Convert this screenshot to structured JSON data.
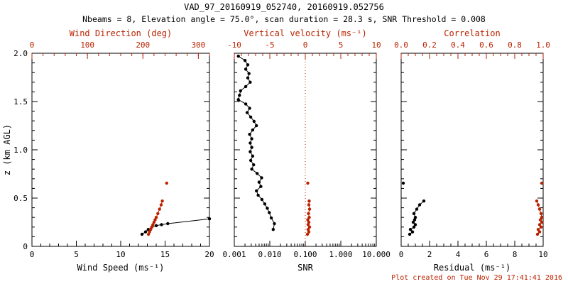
{
  "title": "VAD_97_20160919_052740, 20160919.052756",
  "subtitle": "Nbeams = 8, Elevation angle = 75.0°, scan duration = 28.3 s, SNR Threshold = 0.008",
  "footer": "Plot created on Tue Nov 29 17:41:41 2016",
  "colors": {
    "primary": "#000000",
    "secondary": "#bb2200",
    "background": "#ffffff"
  },
  "chart_data": [
    {
      "type": "scatter",
      "id": "wind",
      "xlabel": "Wind Speed (ms⁻¹)",
      "xlabel_top": "Wind Direction (deg)",
      "ylabel": "z (km AGL)",
      "bottom_axis": {
        "min": 0,
        "max": 20,
        "ticks": [
          0,
          5,
          10,
          15,
          20
        ],
        "labels": [
          "0",
          "5",
          "10",
          "15",
          "20"
        ],
        "minor": 1
      },
      "top_axis": {
        "min": 0,
        "max": 320,
        "ticks": [
          0,
          100,
          200,
          300
        ],
        "labels": [
          "0",
          "100",
          "200",
          "300"
        ],
        "minor": 20
      },
      "y_axis": {
        "min": 0,
        "max": 2,
        "ticks": [
          0,
          0.5,
          1.0,
          1.5,
          2.0
        ],
        "labels": [
          "0",
          "0.5",
          "1.0",
          "1.5",
          "2.0"
        ],
        "minor": 0.1,
        "show_labels": true
      },
      "series": [
        {
          "name": "wind-speed",
          "axis": "bottom",
          "color": "#000000",
          "line": true,
          "points": [
            [
              12.4,
              0.125
            ],
            [
              12.8,
              0.15
            ],
            [
              13.1,
              0.175
            ],
            [
              13.5,
              0.2
            ],
            [
              14.0,
              0.215
            ],
            [
              14.6,
              0.225
            ],
            [
              15.3,
              0.235
            ],
            [
              20.0,
              0.285
            ]
          ]
        },
        {
          "name": "wind-direction",
          "axis": "top",
          "color": "#bb2200",
          "line": true,
          "points": [
            [
              210,
              0.125
            ],
            [
              212,
              0.15
            ],
            [
              214,
              0.175
            ],
            [
              216,
              0.2
            ],
            [
              218,
              0.225
            ],
            [
              220,
              0.25
            ],
            [
              222,
              0.275
            ],
            [
              224,
              0.3
            ],
            [
              227,
              0.34
            ],
            [
              230,
              0.385
            ],
            [
              233,
              0.43
            ],
            [
              235,
              0.47
            ]
          ]
        },
        {
          "name": "wind-direction-outlier",
          "axis": "top",
          "color": "#bb2200",
          "line": false,
          "points": [
            [
              243,
              0.655
            ]
          ]
        }
      ]
    },
    {
      "type": "scatter",
      "id": "snr",
      "xlabel": "SNR",
      "xlabel_top": "Vertical velocity (ms⁻¹)",
      "ylabel": "",
      "bottom_axis": {
        "scale": "log",
        "min": 0.001,
        "max": 10,
        "ticks": [
          0.001,
          0.01,
          0.1,
          1,
          10
        ],
        "labels": [
          "0.001",
          "0.010",
          "0.100",
          "1.000",
          "10.000"
        ]
      },
      "top_axis": {
        "min": -10,
        "max": 10,
        "ticks": [
          -10,
          -5,
          0,
          5,
          10
        ],
        "labels": [
          "-10",
          "-5",
          "0",
          "5",
          "10"
        ],
        "minor": 1
      },
      "y_axis": {
        "min": 0,
        "max": 2,
        "ticks": [
          0,
          0.5,
          1.0,
          1.5,
          2.0
        ],
        "labels": [
          "0",
          "0.5",
          "1.0",
          "1.5",
          "2.0"
        ],
        "minor": 0.1,
        "show_labels": false
      },
      "zero_line_top": 0,
      "series": [
        {
          "name": "snr-profile",
          "axis": "bottom",
          "color": "#000000",
          "line": true,
          "points": [
            [
              0.0013,
              1.97
            ],
            [
              0.002,
              1.925
            ],
            [
              0.0024,
              1.88
            ],
            [
              0.0021,
              1.835
            ],
            [
              0.0026,
              1.79
            ],
            [
              0.0024,
              1.745
            ],
            [
              0.0028,
              1.7
            ],
            [
              0.0021,
              1.655
            ],
            [
              0.0015,
              1.61
            ],
            [
              0.0014,
              1.565
            ],
            [
              0.0013,
              1.52
            ],
            [
              0.0021,
              1.475
            ],
            [
              0.0027,
              1.43
            ],
            [
              0.0023,
              1.385
            ],
            [
              0.0029,
              1.34
            ],
            [
              0.0036,
              1.295
            ],
            [
              0.0042,
              1.25
            ],
            [
              0.0033,
              1.205
            ],
            [
              0.0027,
              1.16
            ],
            [
              0.0031,
              1.115
            ],
            [
              0.0028,
              1.07
            ],
            [
              0.0031,
              1.025
            ],
            [
              0.0028,
              0.98
            ],
            [
              0.0033,
              0.935
            ],
            [
              0.0029,
              0.89
            ],
            [
              0.0035,
              0.845
            ],
            [
              0.0031,
              0.8
            ],
            [
              0.0044,
              0.755
            ],
            [
              0.0059,
              0.71
            ],
            [
              0.005,
              0.665
            ],
            [
              0.0056,
              0.62
            ],
            [
              0.0042,
              0.575
            ],
            [
              0.0047,
              0.53
            ],
            [
              0.006,
              0.485
            ],
            [
              0.0072,
              0.44
            ],
            [
              0.0085,
              0.395
            ],
            [
              0.0097,
              0.35
            ],
            [
              0.011,
              0.295
            ],
            [
              0.0135,
              0.235
            ],
            [
              0.0125,
              0.175
            ]
          ]
        },
        {
          "name": "vertical-velocity",
          "axis": "top",
          "color": "#bb2200",
          "line": true,
          "points": [
            [
              0.3,
              0.125
            ],
            [
              0.5,
              0.15
            ],
            [
              0.4,
              0.175
            ],
            [
              0.6,
              0.2
            ],
            [
              0.4,
              0.225
            ],
            [
              0.5,
              0.25
            ],
            [
              0.35,
              0.275
            ],
            [
              0.55,
              0.3
            ],
            [
              0.45,
              0.34
            ],
            [
              0.6,
              0.385
            ],
            [
              0.5,
              0.43
            ],
            [
              0.55,
              0.47
            ]
          ]
        },
        {
          "name": "vertical-velocity-outlier",
          "axis": "top",
          "color": "#bb2200",
          "line": false,
          "points": [
            [
              0.35,
              0.655
            ]
          ]
        }
      ]
    },
    {
      "type": "scatter",
      "id": "residual",
      "xlabel": "Residual (ms⁻¹)",
      "xlabel_top": "Correlation",
      "ylabel": "",
      "bottom_axis": {
        "min": 0,
        "max": 10,
        "ticks": [
          0,
          2,
          4,
          6,
          8,
          10
        ],
        "labels": [
          "0",
          "2",
          "4",
          "6",
          "8",
          "10"
        ],
        "minor": 0.5
      },
      "top_axis": {
        "min": 0,
        "max": 1,
        "ticks": [
          0,
          0.2,
          0.4,
          0.6,
          0.8,
          1.0
        ],
        "labels": [
          "0.0",
          "0.2",
          "0.4",
          "0.6",
          "0.8",
          "1.0"
        ],
        "minor": 0.05
      },
      "y_axis": {
        "min": 0,
        "max": 2,
        "ticks": [
          0,
          0.5,
          1.0,
          1.5,
          2.0
        ],
        "labels": [
          "0",
          "0.5",
          "1.0",
          "1.5",
          "2.0"
        ],
        "minor": 0.1,
        "show_labels": false
      },
      "series": [
        {
          "name": "residual",
          "axis": "bottom",
          "color": "#000000",
          "line": true,
          "points": [
            [
              0.6,
              0.125
            ],
            [
              0.8,
              0.15
            ],
            [
              0.65,
              0.175
            ],
            [
              0.9,
              0.2
            ],
            [
              1.0,
              0.225
            ],
            [
              0.85,
              0.25
            ],
            [
              0.95,
              0.275
            ],
            [
              1.0,
              0.3
            ],
            [
              0.9,
              0.34
            ],
            [
              1.1,
              0.385
            ],
            [
              1.3,
              0.43
            ],
            [
              1.6,
              0.47
            ]
          ]
        },
        {
          "name": "residual-outlier",
          "axis": "bottom",
          "color": "#000000",
          "line": false,
          "points": [
            [
              0.15,
              0.655
            ]
          ]
        },
        {
          "name": "correlation",
          "axis": "top",
          "color": "#bb2200",
          "line": true,
          "points": [
            [
              0.96,
              0.125
            ],
            [
              0.975,
              0.15
            ],
            [
              0.965,
              0.175
            ],
            [
              0.985,
              0.2
            ],
            [
              0.975,
              0.225
            ],
            [
              0.99,
              0.25
            ],
            [
              0.98,
              0.275
            ],
            [
              0.99,
              0.3
            ],
            [
              0.985,
              0.34
            ],
            [
              0.975,
              0.385
            ],
            [
              0.965,
              0.43
            ],
            [
              0.955,
              0.47
            ]
          ]
        },
        {
          "name": "correlation-outlier",
          "axis": "top",
          "color": "#bb2200",
          "line": false,
          "points": [
            [
              0.99,
              0.655
            ]
          ]
        }
      ]
    }
  ]
}
